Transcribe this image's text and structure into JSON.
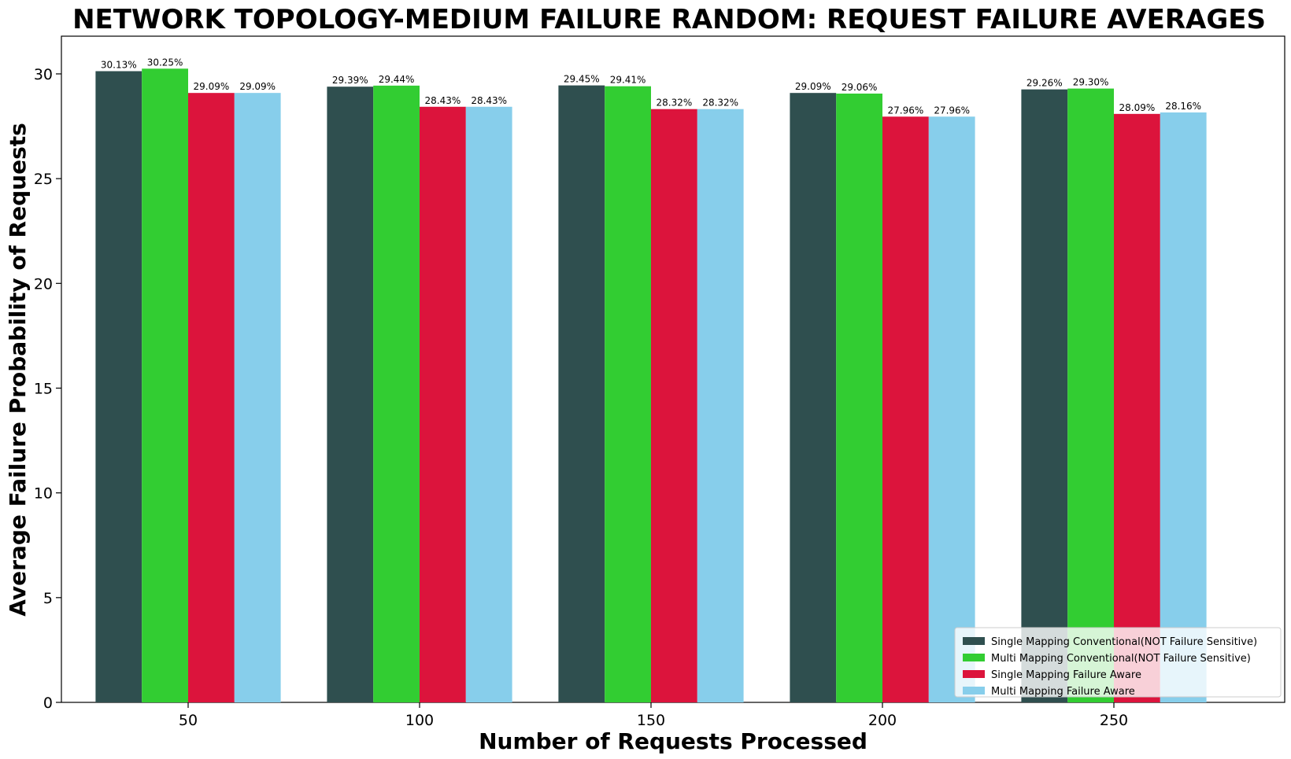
{
  "chart_data": {
    "type": "bar",
    "title": "NETWORK TOPOLOGY-MEDIUM FAILURE RANDOM: REQUEST FAILURE AVERAGES",
    "xlabel": "Number of Requests Processed",
    "ylabel": "Average Failure Probability of Requests",
    "categories": [
      "50",
      "100",
      "150",
      "200",
      "250"
    ],
    "ylim": [
      0,
      31.8
    ],
    "yticks": [
      0,
      5,
      10,
      15,
      20,
      25,
      30
    ],
    "grid": false,
    "legend_position": "bottom-right",
    "value_suffix": "%",
    "series": [
      {
        "name": "Single Mapping Conventional(NOT Failure Sensitive)",
        "color": "#2f4f4f",
        "values": [
          30.13,
          29.39,
          29.45,
          29.09,
          29.26
        ]
      },
      {
        "name": "Multi Mapping Conventional(NOT Failure Sensitive)",
        "color": "#32cd32",
        "values": [
          30.25,
          29.44,
          29.41,
          29.06,
          29.3
        ]
      },
      {
        "name": "Single Mapping Failure Aware",
        "color": "#dc143c",
        "values": [
          29.09,
          28.43,
          28.32,
          27.96,
          28.09
        ]
      },
      {
        "name": "Multi Mapping Failure Aware",
        "color": "#87ceeb",
        "values": [
          29.09,
          28.43,
          28.32,
          27.96,
          28.16
        ]
      }
    ]
  }
}
